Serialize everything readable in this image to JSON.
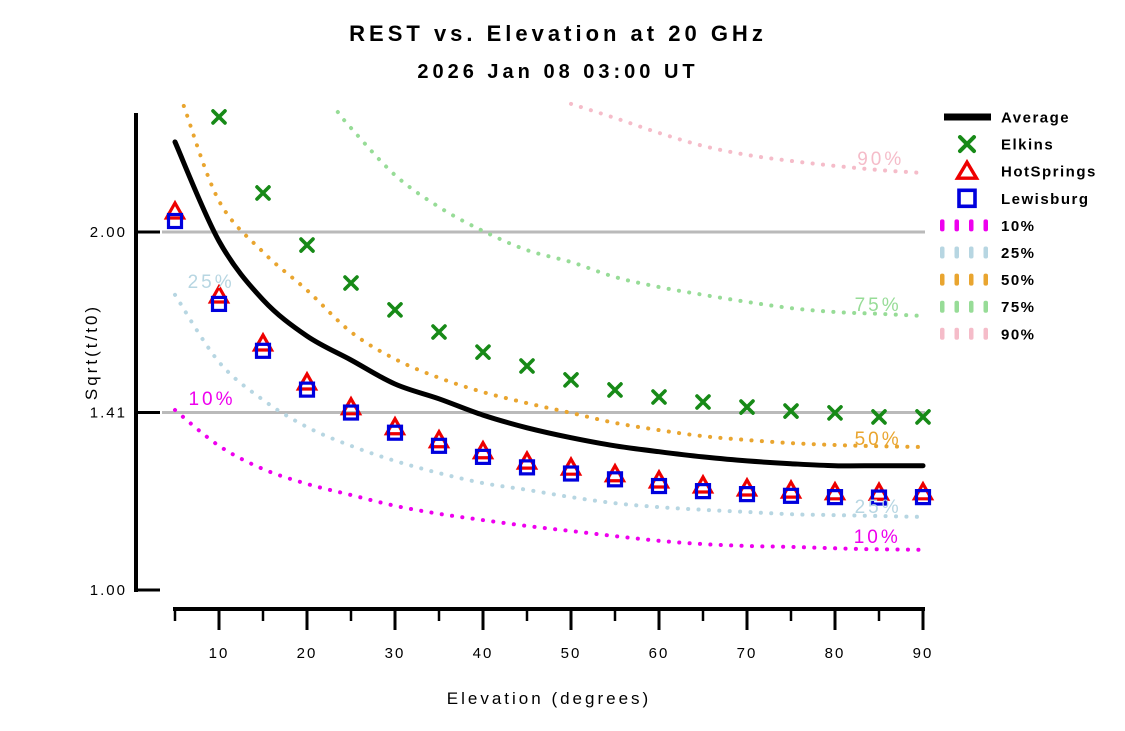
{
  "title": "REST vs. Elevation at 20 GHz",
  "subtitle": "2026 Jan 08 03:00 UT",
  "colors": {
    "average": "#000000",
    "elkins": "#178A17",
    "hotsprings": "#EE0000",
    "lewisburg": "#0000DD",
    "p10": "#EE00EE",
    "p25": "#B7D6E2",
    "p50": "#E9A52F",
    "p75": "#97DC97",
    "p90": "#F5BCC9",
    "reference_line": "#BABABA",
    "axis": "#000000"
  },
  "chart_data": {
    "type": "line",
    "xlabel": "Elevation (degrees)",
    "ylabel": "Sqrt(t/t0)",
    "y_scale": "log2",
    "x_range": [
      5,
      90
    ],
    "y_range": [
      1.0,
      2.52
    ],
    "grid": "off",
    "legend_position": "right-outside",
    "reference_lines": [
      2.0,
      1.41
    ],
    "x_ticks_major": [
      10,
      20,
      30,
      40,
      50,
      60,
      70,
      80,
      90
    ],
    "x_ticks_minor": [
      5,
      15,
      25,
      35,
      45,
      55,
      65,
      75,
      85
    ],
    "y_ticks": [
      {
        "label": "2.00",
        "value": 2.0
      },
      {
        "label": "1.41",
        "value": 1.41
      },
      {
        "label": "1.00",
        "value": 1.0
      }
    ],
    "series": [
      {
        "name": "90%",
        "style": "dotted",
        "color_key": "p90",
        "el": [
          50,
          55,
          60,
          65,
          70,
          75,
          80,
          85,
          90
        ],
        "values": [
          2.563,
          2.494,
          2.423,
          2.363,
          2.322,
          2.295,
          2.273,
          2.255,
          2.242
        ]
      },
      {
        "name": "75%",
        "style": "dotted",
        "color_key": "p75",
        "el": [
          23.5,
          25,
          30,
          35,
          40,
          45,
          50,
          55,
          60,
          65,
          70,
          75,
          80,
          85,
          90
        ],
        "values": [
          2.523,
          2.446,
          2.233,
          2.099,
          2.004,
          1.931,
          1.887,
          1.833,
          1.798,
          1.771,
          1.747,
          1.726,
          1.713,
          1.707,
          1.7
        ]
      },
      {
        "name": "50%",
        "style": "dotted",
        "color_key": "p50",
        "el": [
          6,
          10,
          15,
          20,
          25,
          30,
          35,
          40,
          45,
          50,
          55,
          60,
          65,
          70,
          75,
          80,
          85,
          90
        ],
        "values": [
          2.553,
          2.124,
          1.924,
          1.787,
          1.648,
          1.564,
          1.508,
          1.467,
          1.436,
          1.409,
          1.382,
          1.363,
          1.347,
          1.337,
          1.329,
          1.324,
          1.321,
          1.319
        ]
      },
      {
        "name": "25%",
        "style": "dotted",
        "color_key": "p25",
        "el": [
          5,
          10,
          15,
          20,
          25,
          30,
          35,
          40,
          45,
          50,
          55,
          60,
          65,
          70,
          75,
          80,
          85,
          90
        ],
        "values": [
          1.771,
          1.555,
          1.445,
          1.371,
          1.322,
          1.284,
          1.254,
          1.23,
          1.214,
          1.197,
          1.183,
          1.174,
          1.168,
          1.163,
          1.158,
          1.156,
          1.154,
          1.152
        ]
      },
      {
        "name": "10%",
        "style": "dotted",
        "color_key": "p10",
        "el": [
          5,
          10,
          15,
          20,
          25,
          30,
          35,
          40,
          45,
          50,
          55,
          60,
          65,
          70,
          75,
          80,
          85,
          90
        ],
        "values": [
          1.417,
          1.322,
          1.264,
          1.228,
          1.202,
          1.177,
          1.159,
          1.145,
          1.132,
          1.121,
          1.11,
          1.1,
          1.093,
          1.089,
          1.087,
          1.084,
          1.082,
          1.081
        ]
      },
      {
        "name": "Average",
        "style": "line",
        "color_key": "average",
        "el": [
          5,
          10,
          15,
          20,
          25,
          30,
          35,
          40,
          45,
          50,
          55,
          60,
          65,
          70,
          75,
          80,
          85,
          90
        ],
        "values": [
          2.381,
          1.965,
          1.754,
          1.635,
          1.561,
          1.49,
          1.448,
          1.403,
          1.369,
          1.343,
          1.322,
          1.307,
          1.294,
          1.284,
          1.277,
          1.272,
          1.272,
          1.272
        ]
      },
      {
        "name": "Elkins",
        "style": "marker-x",
        "color_key": "elkins",
        "el": [
          10,
          15,
          20,
          25,
          30,
          35,
          40,
          45,
          50,
          55,
          60,
          65,
          70,
          75,
          80,
          85,
          90
        ],
        "values": [
          2.499,
          2.157,
          1.95,
          1.812,
          1.72,
          1.648,
          1.585,
          1.543,
          1.502,
          1.473,
          1.453,
          1.439,
          1.425,
          1.414,
          1.409,
          1.398,
          1.398
        ]
      },
      {
        "name": "HotSprings",
        "style": "marker-triangle",
        "color_key": "hotsprings",
        "el": [
          5,
          10,
          15,
          20,
          25,
          30,
          35,
          40,
          45,
          50,
          55,
          60,
          65,
          70,
          75,
          80,
          85,
          90
        ],
        "values": [
          2.079,
          1.767,
          1.61,
          1.493,
          1.423,
          1.369,
          1.335,
          1.307,
          1.281,
          1.266,
          1.25,
          1.235,
          1.223,
          1.216,
          1.211,
          1.207,
          1.206,
          1.207
        ]
      },
      {
        "name": "Lewisburg",
        "style": "marker-square",
        "color_key": "lewisburg",
        "el": [
          5,
          10,
          15,
          20,
          25,
          30,
          35,
          40,
          45,
          50,
          55,
          60,
          65,
          70,
          75,
          80,
          85,
          90
        ],
        "values": [
          2.043,
          1.74,
          1.589,
          1.474,
          1.41,
          1.356,
          1.322,
          1.294,
          1.268,
          1.253,
          1.239,
          1.223,
          1.211,
          1.204,
          1.2,
          1.197,
          1.196,
          1.197
        ]
      }
    ],
    "curve_labels": [
      {
        "text": "90%",
        "color_key": "p90",
        "el": 85.2,
        "value": 2.303
      },
      {
        "text": "75%",
        "color_key": "p75",
        "el": 84.9,
        "value": 1.736
      },
      {
        "text": "50%",
        "color_key": "p50",
        "el": 84.9,
        "value": 1.34
      },
      {
        "text": "25%",
        "color_key": "p25",
        "el": 84.9,
        "value": 1.174
      },
      {
        "text": "10%",
        "color_key": "p10",
        "el": 84.8,
        "value": 1.108
      },
      {
        "text": "25%",
        "color_key": "p25",
        "el": 9.1,
        "value": 1.816
      },
      {
        "text": "10%",
        "color_key": "p10",
        "el": 9.2,
        "value": 1.448
      }
    ]
  },
  "legend": {
    "items": [
      {
        "label": "Average",
        "swatch": "line",
        "color_key": "average"
      },
      {
        "label": "Elkins",
        "swatch": "x",
        "color_key": "elkins"
      },
      {
        "label": "HotSprings",
        "swatch": "triangle",
        "color_key": "hotsprings"
      },
      {
        "label": "Lewisburg",
        "swatch": "square",
        "color_key": "lewisburg"
      },
      {
        "label": "10%",
        "swatch": "dashes",
        "color_key": "p10"
      },
      {
        "label": "25%",
        "swatch": "dashes",
        "color_key": "p25"
      },
      {
        "label": "50%",
        "swatch": "dashes",
        "color_key": "p50"
      },
      {
        "label": "75%",
        "swatch": "dashes",
        "color_key": "p75"
      },
      {
        "label": "90%",
        "swatch": "dashes",
        "color_key": "p90"
      }
    ]
  }
}
